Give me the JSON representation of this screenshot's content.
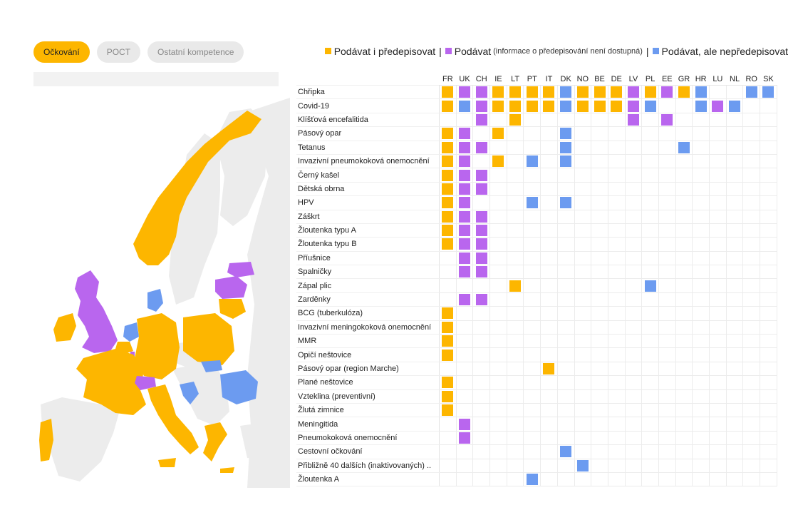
{
  "tabs": [
    {
      "label": "Očkování",
      "active": true
    },
    {
      "label": "POCT",
      "active": false
    },
    {
      "label": "Ostatní kompetence",
      "active": false
    }
  ],
  "legend": {
    "item1": "Podávat i předepisovat",
    "sep1": "|",
    "item2": "Podávat",
    "item2_note": "(informace o předepisování není dostupná)",
    "sep2": "|",
    "item3": "Podávat, ale nepředepisovat"
  },
  "colors": {
    "Y": "#fdb600",
    "P": "#b966ee",
    "B": "#6c9bf0",
    "land_other": "#ececec"
  },
  "map_regions": [
    {
      "name": "Norway",
      "cat": "Y"
    },
    {
      "name": "Sweden",
      "cat": "none"
    },
    {
      "name": "Finland",
      "cat": "none"
    },
    {
      "name": "United Kingdom",
      "cat": "P"
    },
    {
      "name": "Ireland",
      "cat": "Y"
    },
    {
      "name": "Denmark",
      "cat": "B"
    },
    {
      "name": "Netherlands",
      "cat": "B"
    },
    {
      "name": "Belgium",
      "cat": "Y"
    },
    {
      "name": "Luxembourg",
      "cat": "P"
    },
    {
      "name": "France",
      "cat": "Y"
    },
    {
      "name": "Germany",
      "cat": "Y"
    },
    {
      "name": "Switzerland",
      "cat": "P"
    },
    {
      "name": "Italy",
      "cat": "Y"
    },
    {
      "name": "Portugal",
      "cat": "Y"
    },
    {
      "name": "Spain",
      "cat": "none"
    },
    {
      "name": "Poland",
      "cat": "Y"
    },
    {
      "name": "Latvia",
      "cat": "P"
    },
    {
      "name": "Estonia",
      "cat": "P"
    },
    {
      "name": "Lithuania",
      "cat": "Y"
    },
    {
      "name": "Slovakia",
      "cat": "B"
    },
    {
      "name": "Croatia",
      "cat": "B"
    },
    {
      "name": "Romania",
      "cat": "B"
    },
    {
      "name": "Greece",
      "cat": "Y"
    }
  ],
  "chart_data": {
    "type": "table",
    "columns": [
      "FR",
      "UK",
      "CH",
      "IE",
      "LT",
      "PT",
      "IT",
      "DK",
      "NO",
      "BE",
      "DE",
      "LV",
      "PL",
      "EE",
      "GR",
      "HR",
      "LU",
      "NL",
      "RO",
      "SK"
    ],
    "legend_map": {
      "Y": "Podávat i předepisovat",
      "P": "Podávat",
      "B": "Podávat, ale nepředepisovat"
    },
    "rows": [
      {
        "label": "Chřipka",
        "cells": [
          "Y",
          "P",
          "P",
          "Y",
          "Y",
          "Y",
          "Y",
          "B",
          "Y",
          "Y",
          "Y",
          "P",
          "Y",
          "P",
          "Y",
          "B",
          "",
          "",
          "B",
          "B"
        ]
      },
      {
        "label": "Covid-19",
        "cells": [
          "Y",
          "B",
          "P",
          "Y",
          "Y",
          "Y",
          "Y",
          "B",
          "Y",
          "Y",
          "Y",
          "P",
          "B",
          "",
          "",
          "B",
          "P",
          "B",
          "",
          ""
        ]
      },
      {
        "label": "Klíšťová encefalitida",
        "cells": [
          "",
          "",
          "P",
          "",
          "Y",
          "",
          "",
          "",
          "",
          "",
          "",
          "P",
          "",
          "P",
          "",
          "",
          "",
          "",
          "",
          ""
        ]
      },
      {
        "label": "Pásový opar",
        "cells": [
          "Y",
          "P",
          "",
          "Y",
          "",
          "",
          "",
          "B",
          "",
          "",
          "",
          "",
          "",
          "",
          "",
          "",
          "",
          "",
          "",
          ""
        ]
      },
      {
        "label": "Tetanus",
        "cells": [
          "Y",
          "P",
          "P",
          "",
          "",
          "",
          "",
          "B",
          "",
          "",
          "",
          "",
          "",
          "",
          "B",
          "",
          "",
          "",
          "",
          ""
        ]
      },
      {
        "label": "Invazivní pneumokoková onemocnění",
        "cells": [
          "Y",
          "P",
          "",
          "Y",
          "",
          "B",
          "",
          "B",
          "",
          "",
          "",
          "",
          "",
          "",
          "",
          "",
          "",
          "",
          "",
          ""
        ]
      },
      {
        "label": "Černý kašel",
        "cells": [
          "Y",
          "P",
          "P",
          "",
          "",
          "",
          "",
          "",
          "",
          "",
          "",
          "",
          "",
          "",
          "",
          "",
          "",
          "",
          "",
          ""
        ]
      },
      {
        "label": "Dětská obrna",
        "cells": [
          "Y",
          "P",
          "P",
          "",
          "",
          "",
          "",
          "",
          "",
          "",
          "",
          "",
          "",
          "",
          "",
          "",
          "",
          "",
          "",
          ""
        ]
      },
      {
        "label": "HPV",
        "cells": [
          "Y",
          "P",
          "",
          "",
          "",
          "B",
          "",
          "B",
          "",
          "",
          "",
          "",
          "",
          "",
          "",
          "",
          "",
          "",
          "",
          ""
        ]
      },
      {
        "label": "Záškrt",
        "cells": [
          "Y",
          "P",
          "P",
          "",
          "",
          "",
          "",
          "",
          "",
          "",
          "",
          "",
          "",
          "",
          "",
          "",
          "",
          "",
          "",
          ""
        ]
      },
      {
        "label": "Žloutenka typu A",
        "cells": [
          "Y",
          "P",
          "P",
          "",
          "",
          "",
          "",
          "",
          "",
          "",
          "",
          "",
          "",
          "",
          "",
          "",
          "",
          "",
          "",
          ""
        ]
      },
      {
        "label": "Žloutenka typu B",
        "cells": [
          "Y",
          "P",
          "P",
          "",
          "",
          "",
          "",
          "",
          "",
          "",
          "",
          "",
          "",
          "",
          "",
          "",
          "",
          "",
          "",
          ""
        ]
      },
      {
        "label": "Příušnice",
        "cells": [
          "",
          "P",
          "P",
          "",
          "",
          "",
          "",
          "",
          "",
          "",
          "",
          "",
          "",
          "",
          "",
          "",
          "",
          "",
          "",
          ""
        ]
      },
      {
        "label": "Spalničky",
        "cells": [
          "",
          "P",
          "P",
          "",
          "",
          "",
          "",
          "",
          "",
          "",
          "",
          "",
          "",
          "",
          "",
          "",
          "",
          "",
          "",
          ""
        ]
      },
      {
        "label": "Zápal plic",
        "cells": [
          "",
          "",
          "",
          "",
          "Y",
          "",
          "",
          "",
          "",
          "",
          "",
          "",
          "B",
          "",
          "",
          "",
          "",
          "",
          "",
          ""
        ]
      },
      {
        "label": "Zarděnky",
        "cells": [
          "",
          "P",
          "P",
          "",
          "",
          "",
          "",
          "",
          "",
          "",
          "",
          "",
          "",
          "",
          "",
          "",
          "",
          "",
          "",
          ""
        ]
      },
      {
        "label": "BCG (tuberkulóza)",
        "cells": [
          "Y",
          "",
          "",
          "",
          "",
          "",
          "",
          "",
          "",
          "",
          "",
          "",
          "",
          "",
          "",
          "",
          "",
          "",
          "",
          ""
        ]
      },
      {
        "label": "Invazivní meningokoková onemocnění",
        "cells": [
          "Y",
          "",
          "",
          "",
          "",
          "",
          "",
          "",
          "",
          "",
          "",
          "",
          "",
          "",
          "",
          "",
          "",
          "",
          "",
          ""
        ]
      },
      {
        "label": "MMR",
        "cells": [
          "Y",
          "",
          "",
          "",
          "",
          "",
          "",
          "",
          "",
          "",
          "",
          "",
          "",
          "",
          "",
          "",
          "",
          "",
          "",
          ""
        ]
      },
      {
        "label": "Opičí neštovice",
        "cells": [
          "Y",
          "",
          "",
          "",
          "",
          "",
          "",
          "",
          "",
          "",
          "",
          "",
          "",
          "",
          "",
          "",
          "",
          "",
          "",
          ""
        ]
      },
      {
        "label": "Pásový opar (region Marche)",
        "cells": [
          "",
          "",
          "",
          "",
          "",
          "",
          "Y",
          "",
          "",
          "",
          "",
          "",
          "",
          "",
          "",
          "",
          "",
          "",
          "",
          ""
        ]
      },
      {
        "label": "Plané neštovice",
        "cells": [
          "Y",
          "",
          "",
          "",
          "",
          "",
          "",
          "",
          "",
          "",
          "",
          "",
          "",
          "",
          "",
          "",
          "",
          "",
          "",
          ""
        ]
      },
      {
        "label": "Vzteklina (preventivní)",
        "cells": [
          "Y",
          "",
          "",
          "",
          "",
          "",
          "",
          "",
          "",
          "",
          "",
          "",
          "",
          "",
          "",
          "",
          "",
          "",
          "",
          ""
        ]
      },
      {
        "label": "Žlutá zimnice",
        "cells": [
          "Y",
          "",
          "",
          "",
          "",
          "",
          "",
          "",
          "",
          "",
          "",
          "",
          "",
          "",
          "",
          "",
          "",
          "",
          "",
          ""
        ]
      },
      {
        "label": "Meningitida",
        "cells": [
          "",
          "P",
          "",
          "",
          "",
          "",
          "",
          "",
          "",
          "",
          "",
          "",
          "",
          "",
          "",
          "",
          "",
          "",
          "",
          ""
        ]
      },
      {
        "label": "Pneumokoková onemocnění",
        "cells": [
          "",
          "P",
          "",
          "",
          "",
          "",
          "",
          "",
          "",
          "",
          "",
          "",
          "",
          "",
          "",
          "",
          "",
          "",
          "",
          ""
        ]
      },
      {
        "label": "Cestovní očkování",
        "cells": [
          "",
          "",
          "",
          "",
          "",
          "",
          "",
          "B",
          "",
          "",
          "",
          "",
          "",
          "",
          "",
          "",
          "",
          "",
          "",
          ""
        ]
      },
      {
        "label": "Přibližně 40 dalších (inaktivovaných) ..",
        "cells": [
          "",
          "",
          "",
          "",
          "",
          "",
          "",
          "",
          "B",
          "",
          "",
          "",
          "",
          "",
          "",
          "",
          "",
          "",
          "",
          ""
        ]
      },
      {
        "label": "Žloutenka A",
        "cells": [
          "",
          "",
          "",
          "",
          "",
          "B",
          "",
          "",
          "",
          "",
          "",
          "",
          "",
          "",
          "",
          "",
          "",
          "",
          "",
          ""
        ]
      }
    ]
  }
}
